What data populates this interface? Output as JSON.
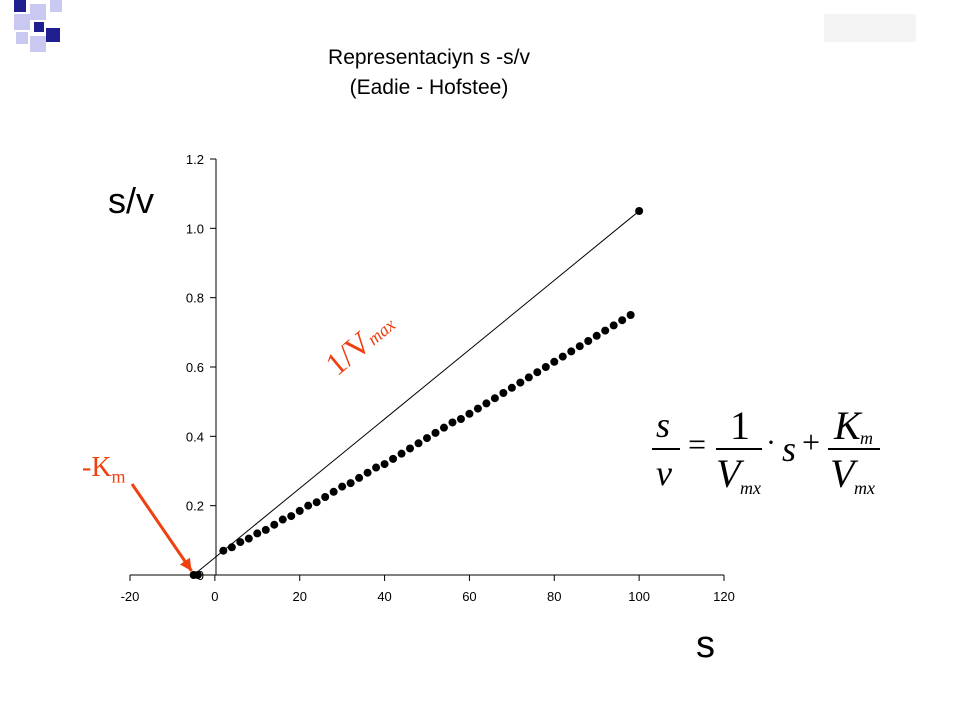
{
  "title": {
    "line1": "Representaciyn s -s/v",
    "line2": "(Eadie - Hofstee)"
  },
  "axis_labels": {
    "y": "s/v",
    "x": "s"
  },
  "annotations": {
    "slope": "1/V",
    "slope_sub": "max",
    "intercept": "-K",
    "intercept_sub": "m"
  },
  "equation": {
    "lhs_num": "s",
    "lhs_den": "v",
    "equals": "=",
    "t1_num": "1",
    "t1_den": "V",
    "t1_den_sub": "mx",
    "dot": "·",
    "s": "s",
    "plus": "+",
    "t2_num": "K",
    "t2_num_sub": "m",
    "t2_den": "V",
    "t2_den_sub": "mx"
  },
  "colors": {
    "annotation": "#ee4010",
    "arrow": "#ee4010",
    "point": "#000000",
    "decor_navy": "#1f1f8f",
    "decor_lavender": "#c8c8f0"
  },
  "chart_data": {
    "type": "scatter",
    "title": "Representaciyn s -s/v (Eadie - Hofstee)",
    "xlabel": "s",
    "ylabel": "s/v",
    "xlim": [
      -20,
      120
    ],
    "ylim": [
      0,
      1.2
    ],
    "x_ticks": [
      "-20",
      "0",
      "20",
      "40",
      "60",
      "80",
      "100",
      "120"
    ],
    "y_ticks": [
      "0",
      "0.2",
      "0.4",
      "0.6",
      "0.8",
      "1.0",
      "1.2"
    ],
    "grid": false,
    "series": [
      {
        "x": [
          -5,
          -4,
          2,
          4,
          6,
          8,
          10,
          12,
          14,
          16,
          18,
          20,
          22,
          24,
          26,
          28,
          30,
          32,
          34,
          36,
          38,
          40,
          42,
          44,
          46,
          48,
          50,
          52,
          54,
          56,
          58,
          60,
          62,
          64,
          66,
          68,
          70,
          72,
          74,
          76,
          78,
          80,
          82,
          84,
          86,
          88,
          90,
          92,
          94,
          96,
          98,
          100
        ],
        "y": [
          0.0,
          0.0,
          0.07,
          0.08,
          0.095,
          0.105,
          0.12,
          0.13,
          0.145,
          0.16,
          0.17,
          0.185,
          0.2,
          0.21,
          0.225,
          0.24,
          0.255,
          0.265,
          0.28,
          0.295,
          0.31,
          0.32,
          0.335,
          0.35,
          0.365,
          0.38,
          0.395,
          0.41,
          0.425,
          0.44,
          0.45,
          0.465,
          0.48,
          0.495,
          0.51,
          0.525,
          0.54,
          0.555,
          0.57,
          0.585,
          0.6,
          0.615,
          0.63,
          0.645,
          0.66,
          0.675,
          0.69,
          0.705,
          0.72,
          0.735,
          0.75,
          1.05
        ]
      }
    ]
  }
}
